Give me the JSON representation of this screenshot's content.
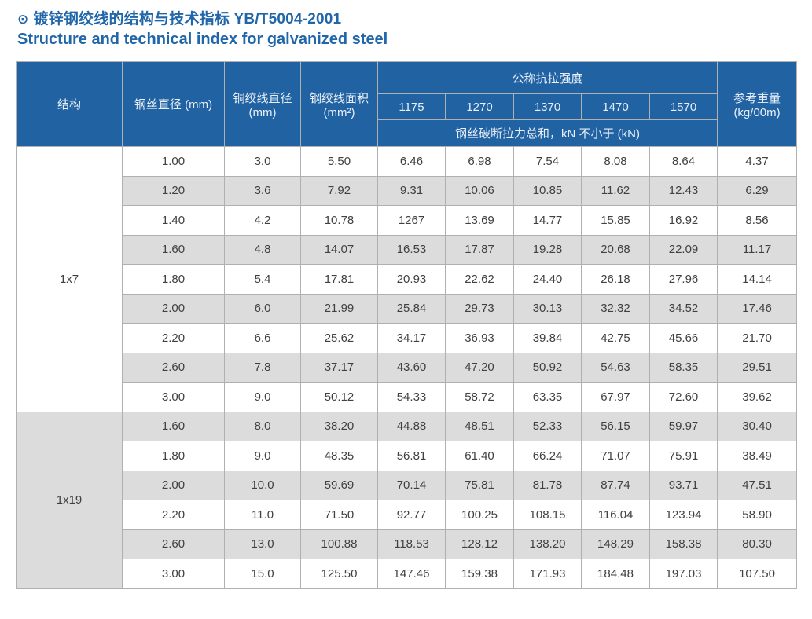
{
  "title": {
    "icon": "⊙",
    "zh": "镀锌钢绞线的结构与技术指标 YB/T5004-2001",
    "en": "Structure and technical index for galvanized steel"
  },
  "colors": {
    "title_blue": "#2066a9",
    "header_bg": "#2163a2",
    "header_text": "#e9eff8",
    "alt_row_bg": "#dcdcdc",
    "body_text": "#404040",
    "border": "#b0b0b0"
  },
  "table": {
    "header": {
      "structure": "结构",
      "wire_diameter": "钢丝直径 (mm)",
      "strand_diameter_label": "铜绞线直径",
      "strand_diameter_unit": "(mm)",
      "strand_area_label": "钢绞线面积",
      "strand_area_unit": "(mm²)",
      "tensile_strength": "公称抗拉强度",
      "strength_values": [
        "1175",
        "1270",
        "1370",
        "1470",
        "1570"
      ],
      "breaking_force_note": "钢丝破断拉力总和，kN 不小于 (kN)",
      "ref_weight_label": "参考重量",
      "ref_weight_unit": "(kg/00m)"
    },
    "groups": [
      {
        "structure": "1x7",
        "rows": [
          [
            "1.00",
            "3.0",
            "5.50",
            "6.46",
            "6.98",
            "7.54",
            "8.08",
            "8.64",
            "4.37"
          ],
          [
            "1.20",
            "3.6",
            "7.92",
            "9.31",
            "10.06",
            "10.85",
            "11.62",
            "12.43",
            "6.29"
          ],
          [
            "1.40",
            "4.2",
            "10.78",
            "1267",
            "13.69",
            "14.77",
            "15.85",
            "16.92",
            "8.56"
          ],
          [
            "1.60",
            "4.8",
            "14.07",
            "16.53",
            "17.87",
            "19.28",
            "20.68",
            "22.09",
            "11.17"
          ],
          [
            "1.80",
            "5.4",
            "17.81",
            "20.93",
            "22.62",
            "24.40",
            "26.18",
            "27.96",
            "14.14"
          ],
          [
            "2.00",
            "6.0",
            "21.99",
            "25.84",
            "29.73",
            "30.13",
            "32.32",
            "34.52",
            "17.46"
          ],
          [
            "2.20",
            "6.6",
            "25.62",
            "34.17",
            "36.93",
            "39.84",
            "42.75",
            "45.66",
            "21.70"
          ],
          [
            "2.60",
            "7.8",
            "37.17",
            "43.60",
            "47.20",
            "50.92",
            "54.63",
            "58.35",
            "29.51"
          ],
          [
            "3.00",
            "9.0",
            "50.12",
            "54.33",
            "58.72",
            "63.35",
            "67.97",
            "72.60",
            "39.62"
          ]
        ]
      },
      {
        "structure": "1x19",
        "rows": [
          [
            "1.60",
            "8.0",
            "38.20",
            "44.88",
            "48.51",
            "52.33",
            "56.15",
            "59.97",
            "30.40"
          ],
          [
            "1.80",
            "9.0",
            "48.35",
            "56.81",
            "61.40",
            "66.24",
            "71.07",
            "75.91",
            "38.49"
          ],
          [
            "2.00",
            "10.0",
            "59.69",
            "70.14",
            "75.81",
            "81.78",
            "87.74",
            "93.71",
            "47.51"
          ],
          [
            "2.20",
            "11.0",
            "71.50",
            "92.77",
            "100.25",
            "108.15",
            "116.04",
            "123.94",
            "58.90"
          ],
          [
            "2.60",
            "13.0",
            "100.88",
            "118.53",
            "128.12",
            "138.20",
            "148.29",
            "158.38",
            "80.30"
          ],
          [
            "3.00",
            "15.0",
            "125.50",
            "147.46",
            "159.38",
            "171.93",
            "184.48",
            "197.03",
            "107.50"
          ]
        ]
      }
    ]
  }
}
